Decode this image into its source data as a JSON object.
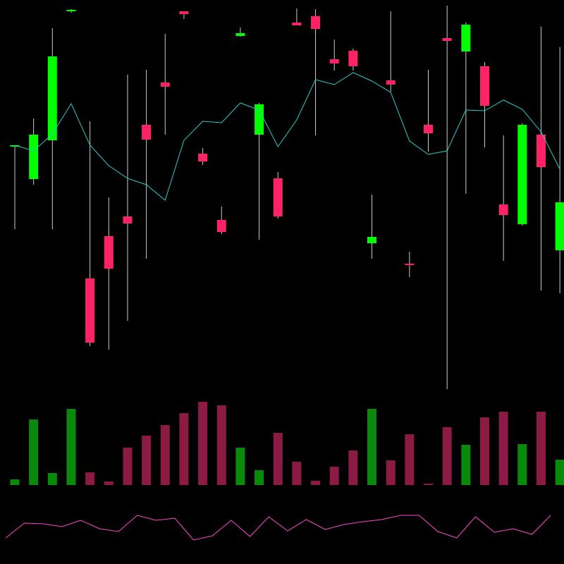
{
  "chart_data": [
    {
      "type": "candlestick",
      "open": [
        593,
        546,
        601,
        784,
        405,
        465,
        493,
        623,
        683,
        784,
        582,
        488,
        749,
        609,
        547,
        768,
        777,
        716,
        728,
        455,
        686,
        426,
        623,
        746,
        727,
        706,
        510,
        482,
        609,
        445
      ],
      "close": [
        594,
        609,
        720,
        786,
        314,
        419,
        483,
        602,
        677,
        780,
        571,
        471,
        753,
        652,
        493,
        764,
        759,
        710,
        706,
        464,
        680,
        424,
        611,
        742,
        765,
        650,
        495,
        623,
        563,
        513
      ],
      "high": [
        594,
        632,
        760,
        787,
        628,
        520,
        694,
        701,
        752,
        784,
        590,
        507,
        761,
        654,
        556,
        788,
        787,
        744,
        731,
        524,
        784,
        443,
        701,
        792,
        768,
        712,
        608,
        625,
        762,
        733
      ],
      "low": [
        475,
        538,
        475,
        782,
        309,
        304,
        345,
        433,
        609,
        773,
        566,
        468,
        748,
        460,
        490,
        764,
        608,
        700,
        700,
        433,
        670,
        407,
        585,
        248,
        525,
        591,
        430,
        480,
        388,
        384
      ],
      "up_color": "#00ff00",
      "down_color": "#ff2266",
      "wick_color": "#cccccc",
      "ylim": [
        0,
        800
      ],
      "overlay": {
        "type": "line",
        "color": "#22cccc",
        "values": [
          594,
          586,
          610,
          653,
          594,
          565,
          547,
          538,
          516,
          601,
          628,
          626,
          654,
          644,
          592,
          630,
          687,
          680,
          697,
          685,
          669,
          600,
          581,
          586,
          644,
          643,
          658,
          645,
          613,
          560
        ]
      }
    },
    {
      "type": "bar",
      "values": [
        8,
        93,
        17,
        108,
        18,
        5,
        53,
        70,
        85,
        102,
        118,
        113,
        53,
        21,
        74,
        33,
        6,
        26,
        49,
        108,
        35,
        72,
        2,
        82,
        57,
        96,
        104,
        58,
        104,
        36
      ],
      "colors": [
        "#0a8a0a",
        "#0a8a0a",
        "#0a8a0a",
        "#0a8a0a",
        "#8b1a44",
        "#8b1a44",
        "#8b1a44",
        "#8b1a44",
        "#8b1a44",
        "#8b1a44",
        "#8b1a44",
        "#8b1a44",
        "#0a8a0a",
        "#0a8a0a",
        "#8b1a44",
        "#8b1a44",
        "#8b1a44",
        "#8b1a44",
        "#8b1a44",
        "#0a8a0a",
        "#8b1a44",
        "#8b1a44",
        "#8b1a44",
        "#8b1a44",
        "#0a8a0a",
        "#8b1a44",
        "#8b1a44",
        "#0a8a0a",
        "#8b1a44",
        "#0a8a0a"
      ],
      "ylim": [
        0,
        128
      ]
    },
    {
      "type": "line",
      "color": "#ff44cc",
      "values": [
        37,
        58,
        57,
        53,
        62,
        50,
        46,
        69,
        62,
        65,
        34,
        40,
        62,
        39,
        67,
        47,
        63,
        49,
        56,
        60,
        63,
        69,
        69,
        46,
        37,
        67,
        45,
        50,
        42,
        69
      ],
      "ylim": [
        20,
        100
      ]
    }
  ]
}
